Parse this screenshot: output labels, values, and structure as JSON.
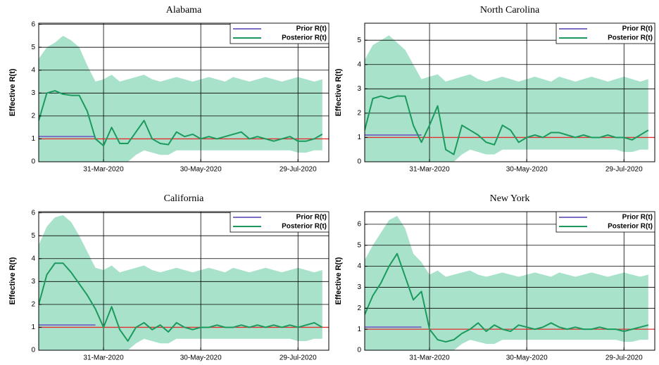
{
  "chart_data": [
    {
      "type": "line",
      "title": "Alabama",
      "y_label": "Effective R(t)",
      "x": [
        "2020-02-20",
        "2020-02-25",
        "2020-03-01",
        "2020-03-06",
        "2020-03-11",
        "2020-03-16",
        "2020-03-21",
        "2020-03-26",
        "2020-03-31",
        "2020-04-05",
        "2020-04-10",
        "2020-04-15",
        "2020-04-20",
        "2020-04-25",
        "2020-04-30",
        "2020-05-05",
        "2020-05-10",
        "2020-05-15",
        "2020-05-20",
        "2020-05-25",
        "2020-05-30",
        "2020-06-04",
        "2020-06-09",
        "2020-06-14",
        "2020-06-19",
        "2020-06-24",
        "2020-06-29",
        "2020-07-04",
        "2020-07-09",
        "2020-07-14",
        "2020-07-19",
        "2020-07-24",
        "2020-07-29",
        "2020-08-03",
        "2020-08-08",
        "2020-08-13"
      ],
      "xlim": [
        "2020-02-20",
        "2020-08-17"
      ],
      "xticks": [
        {
          "value": "2020-03-31",
          "label": "31-Mar-2020"
        },
        {
          "value": "2020-05-30",
          "label": "30-May-2020"
        },
        {
          "value": "2020-07-29",
          "label": "29-Jul-2020"
        }
      ],
      "ylim": [
        0,
        6.05
      ],
      "yticks": [
        0,
        1,
        2,
        3,
        4,
        5,
        6
      ],
      "grid": true,
      "reference_line": 1,
      "reference_color": "#e03030",
      "band": {
        "color": "#a9e2ca",
        "upper": [
          4.5,
          5,
          5.2,
          5.5,
          5.3,
          5,
          4.2,
          3.5,
          3.6,
          3.8,
          3.5,
          3.6,
          3.7,
          3.8,
          3.6,
          3.5,
          3.6,
          3.7,
          3.6,
          3.5,
          3.6,
          3.7,
          3.6,
          3.5,
          3.7,
          3.6,
          3.5,
          3.6,
          3.7,
          3.6,
          3.5,
          3.6,
          3.7,
          3.6,
          3.5,
          3.6
        ],
        "lower": [
          0,
          0,
          0,
          0,
          0,
          0,
          0,
          0,
          0,
          0,
          0,
          0,
          0.3,
          0.5,
          0.4,
          0.3,
          0.3,
          0.5,
          0.5,
          0.5,
          0.5,
          0.5,
          0.5,
          0.5,
          0.5,
          0.5,
          0.5,
          0.5,
          0.5,
          0.5,
          0.5,
          0.5,
          0.4,
          0.4,
          0.5,
          0.5
        ]
      },
      "series": [
        {
          "name": "Prior R(t)",
          "color": "#7a6fc4",
          "values": [
            1.1,
            1.1,
            1.1,
            1.1,
            1.1,
            1.1,
            1.1,
            1.1,
            null,
            null,
            null,
            null,
            null,
            null,
            null,
            null,
            null,
            null,
            null,
            null,
            null,
            null,
            null,
            null,
            null,
            null,
            null,
            null,
            null,
            null,
            null,
            null,
            null,
            null,
            null,
            null
          ]
        },
        {
          "name": "Posterior R(t)",
          "color": "#1a9a5e",
          "values": [
            1.8,
            3.0,
            3.1,
            2.95,
            2.9,
            2.9,
            2.2,
            1.0,
            0.7,
            1.5,
            0.8,
            0.8,
            1.3,
            1.8,
            1.0,
            0.8,
            0.75,
            1.3,
            1.1,
            1.2,
            1.0,
            1.1,
            1.0,
            1.1,
            1.2,
            1.3,
            1.0,
            1.1,
            1.0,
            0.9,
            1.0,
            1.1,
            0.9,
            0.9,
            1.0,
            1.2
          ]
        }
      ]
    },
    {
      "type": "line",
      "title": "North Carolina",
      "y_label": "Effective R(t)",
      "x": [
        "2020-02-20",
        "2020-02-25",
        "2020-03-01",
        "2020-03-06",
        "2020-03-11",
        "2020-03-16",
        "2020-03-21",
        "2020-03-26",
        "2020-03-31",
        "2020-04-05",
        "2020-04-10",
        "2020-04-15",
        "2020-04-20",
        "2020-04-25",
        "2020-04-30",
        "2020-05-05",
        "2020-05-10",
        "2020-05-15",
        "2020-05-20",
        "2020-05-25",
        "2020-05-30",
        "2020-06-04",
        "2020-06-09",
        "2020-06-14",
        "2020-06-19",
        "2020-06-24",
        "2020-06-29",
        "2020-07-04",
        "2020-07-09",
        "2020-07-14",
        "2020-07-19",
        "2020-07-24",
        "2020-07-29",
        "2020-08-03",
        "2020-08-08",
        "2020-08-13"
      ],
      "xlim": [
        "2020-02-20",
        "2020-08-17"
      ],
      "xticks": [
        {
          "value": "2020-03-31",
          "label": "31-Mar-2020"
        },
        {
          "value": "2020-05-30",
          "label": "30-May-2020"
        },
        {
          "value": "2020-07-29",
          "label": "29-Jul-2020"
        }
      ],
      "ylim": [
        0,
        5.7
      ],
      "yticks": [
        0,
        1,
        2,
        3,
        4,
        5
      ],
      "grid": true,
      "reference_line": 1,
      "reference_color": "#e03030",
      "band": {
        "color": "#a9e2ca",
        "upper": [
          4.2,
          4.8,
          5,
          5.2,
          4.9,
          4.6,
          4,
          3.4,
          3.5,
          3.6,
          3.3,
          3.4,
          3.5,
          3.6,
          3.4,
          3.3,
          3.4,
          3.5,
          3.4,
          3.3,
          3.4,
          3.5,
          3.4,
          3.3,
          3.5,
          3.4,
          3.3,
          3.4,
          3.5,
          3.4,
          3.3,
          3.4,
          3.5,
          3.4,
          3.3,
          3.4
        ],
        "lower": [
          0,
          0,
          0,
          0,
          0,
          0,
          0,
          0,
          0,
          0,
          0,
          0,
          0.3,
          0.5,
          0.4,
          0.3,
          0.3,
          0.5,
          0.5,
          0.5,
          0.5,
          0.5,
          0.5,
          0.5,
          0.5,
          0.5,
          0.5,
          0.5,
          0.5,
          0.5,
          0.5,
          0.5,
          0.4,
          0.4,
          0.5,
          0.5
        ]
      },
      "series": [
        {
          "name": "Prior R(t)",
          "color": "#7a6fc4",
          "values": [
            1.1,
            1.1,
            1.1,
            1.1,
            1.1,
            1.1,
            1.1,
            1.1,
            null,
            null,
            null,
            null,
            null,
            null,
            null,
            null,
            null,
            null,
            null,
            null,
            null,
            null,
            null,
            null,
            null,
            null,
            null,
            null,
            null,
            null,
            null,
            null,
            null,
            null,
            null,
            null
          ]
        },
        {
          "name": "Posterior R(t)",
          "color": "#1a9a5e",
          "values": [
            1.3,
            2.6,
            2.7,
            2.6,
            2.7,
            2.7,
            1.5,
            0.8,
            1.5,
            2.3,
            0.5,
            0.3,
            1.5,
            1.3,
            1.1,
            0.8,
            0.7,
            1.5,
            1.3,
            0.8,
            1.0,
            1.1,
            1.0,
            1.2,
            1.2,
            1.1,
            1.0,
            1.1,
            1.0,
            1.0,
            1.1,
            1.0,
            1.0,
            0.9,
            1.1,
            1.3
          ]
        }
      ]
    },
    {
      "type": "line",
      "title": "California",
      "y_label": "Effective R(t)",
      "x": [
        "2020-02-20",
        "2020-02-25",
        "2020-03-01",
        "2020-03-06",
        "2020-03-11",
        "2020-03-16",
        "2020-03-21",
        "2020-03-26",
        "2020-03-31",
        "2020-04-05",
        "2020-04-10",
        "2020-04-15",
        "2020-04-20",
        "2020-04-25",
        "2020-04-30",
        "2020-05-05",
        "2020-05-10",
        "2020-05-15",
        "2020-05-20",
        "2020-05-25",
        "2020-05-30",
        "2020-06-04",
        "2020-06-09",
        "2020-06-14",
        "2020-06-19",
        "2020-06-24",
        "2020-06-29",
        "2020-07-04",
        "2020-07-09",
        "2020-07-14",
        "2020-07-19",
        "2020-07-24",
        "2020-07-29",
        "2020-08-03",
        "2020-08-08",
        "2020-08-13"
      ],
      "xlim": [
        "2020-02-20",
        "2020-08-17"
      ],
      "xticks": [
        {
          "value": "2020-03-31",
          "label": "31-Mar-2020"
        },
        {
          "value": "2020-05-30",
          "label": "30-May-2020"
        },
        {
          "value": "2020-07-29",
          "label": "29-Jul-2020"
        }
      ],
      "ylim": [
        0,
        6.05
      ],
      "yticks": [
        0,
        1,
        2,
        3,
        4,
        5,
        6
      ],
      "grid": true,
      "reference_line": 1,
      "reference_color": "#e03030",
      "band": {
        "color": "#a9e2ca",
        "upper": [
          4.6,
          5.4,
          5.8,
          5.9,
          5.6,
          5,
          4.3,
          3.6,
          3.5,
          3.7,
          3.4,
          3.5,
          3.6,
          3.7,
          3.5,
          3.4,
          3.5,
          3.6,
          3.5,
          3.4,
          3.5,
          3.6,
          3.5,
          3.4,
          3.6,
          3.5,
          3.4,
          3.5,
          3.6,
          3.5,
          3.4,
          3.5,
          3.6,
          3.5,
          3.4,
          3.5
        ],
        "lower": [
          0,
          0,
          0,
          0,
          0,
          0,
          0,
          0,
          0,
          0,
          0,
          0,
          0.3,
          0.5,
          0.4,
          0.3,
          0.3,
          0.5,
          0.5,
          0.5,
          0.5,
          0.5,
          0.5,
          0.5,
          0.5,
          0.5,
          0.5,
          0.5,
          0.5,
          0.5,
          0.5,
          0.5,
          0.4,
          0.4,
          0.5,
          0.5
        ]
      },
      "series": [
        {
          "name": "Prior R(t)",
          "color": "#7a6fc4",
          "values": [
            1.1,
            1.1,
            1.1,
            1.1,
            1.1,
            1.1,
            1.1,
            1.1,
            null,
            null,
            null,
            null,
            null,
            null,
            null,
            null,
            null,
            null,
            null,
            null,
            null,
            null,
            null,
            null,
            null,
            null,
            null,
            null,
            null,
            null,
            null,
            null,
            null,
            null,
            null,
            null
          ]
        },
        {
          "name": "Posterior R(t)",
          "color": "#1a9a5e",
          "values": [
            2.0,
            3.3,
            3.8,
            3.8,
            3.4,
            2.9,
            2.4,
            1.8,
            1.0,
            1.9,
            0.9,
            0.4,
            1.0,
            1.2,
            0.9,
            1.1,
            0.8,
            1.2,
            1.0,
            0.9,
            1.0,
            1.0,
            1.1,
            1.0,
            1.0,
            1.1,
            1.0,
            1.1,
            1.0,
            1.1,
            1.0,
            1.1,
            1.0,
            1.1,
            1.2,
            1.0
          ]
        }
      ]
    },
    {
      "type": "line",
      "title": "New York",
      "y_label": "Effective R(t)",
      "x": [
        "2020-02-20",
        "2020-02-25",
        "2020-03-01",
        "2020-03-06",
        "2020-03-11",
        "2020-03-16",
        "2020-03-21",
        "2020-03-26",
        "2020-03-31",
        "2020-04-05",
        "2020-04-10",
        "2020-04-15",
        "2020-04-20",
        "2020-04-25",
        "2020-04-30",
        "2020-05-05",
        "2020-05-10",
        "2020-05-15",
        "2020-05-20",
        "2020-05-25",
        "2020-05-30",
        "2020-06-04",
        "2020-06-09",
        "2020-06-14",
        "2020-06-19",
        "2020-06-24",
        "2020-06-29",
        "2020-07-04",
        "2020-07-09",
        "2020-07-14",
        "2020-07-19",
        "2020-07-24",
        "2020-07-29",
        "2020-08-03",
        "2020-08-08",
        "2020-08-13"
      ],
      "xlim": [
        "2020-02-20",
        "2020-08-17"
      ],
      "xticks": [
        {
          "value": "2020-03-31",
          "label": "31-Mar-2020"
        },
        {
          "value": "2020-05-30",
          "label": "30-May-2020"
        },
        {
          "value": "2020-07-29",
          "label": "29-Jul-2020"
        }
      ],
      "ylim": [
        0,
        6.6
      ],
      "yticks": [
        0,
        1,
        2,
        3,
        4,
        5,
        6
      ],
      "grid": true,
      "reference_line": 1,
      "reference_color": "#e03030",
      "band": {
        "color": "#a9e2ca",
        "upper": [
          4.3,
          5,
          5.6,
          6.2,
          6.4,
          5.8,
          4.6,
          4.2,
          3.6,
          3.8,
          3.5,
          3.6,
          3.7,
          3.8,
          3.6,
          3.5,
          3.6,
          3.7,
          3.6,
          3.5,
          3.6,
          3.7,
          3.6,
          3.5,
          3.7,
          3.6,
          3.5,
          3.6,
          3.7,
          3.6,
          3.5,
          3.6,
          3.7,
          3.6,
          3.5,
          3.6
        ],
        "lower": [
          0,
          0,
          0,
          0,
          0,
          0,
          0,
          0,
          0,
          0,
          0,
          0,
          0.3,
          0.5,
          0.4,
          0.3,
          0.3,
          0.5,
          0.5,
          0.5,
          0.5,
          0.5,
          0.5,
          0.5,
          0.5,
          0.5,
          0.5,
          0.5,
          0.5,
          0.5,
          0.5,
          0.5,
          0.4,
          0.4,
          0.5,
          0.5
        ]
      },
      "series": [
        {
          "name": "Prior R(t)",
          "color": "#7a6fc4",
          "values": [
            1.1,
            1.1,
            1.1,
            1.1,
            1.1,
            1.1,
            1.1,
            1.1,
            null,
            null,
            null,
            null,
            null,
            null,
            null,
            null,
            null,
            null,
            null,
            null,
            null,
            null,
            null,
            null,
            null,
            null,
            null,
            null,
            null,
            null,
            null,
            null,
            null,
            null,
            null,
            null
          ]
        },
        {
          "name": "Posterior R(t)",
          "color": "#1a9a5e",
          "values": [
            1.7,
            2.6,
            3.2,
            4.0,
            4.6,
            3.5,
            2.4,
            2.8,
            1.0,
            0.5,
            0.4,
            0.5,
            0.8,
            1.0,
            1.3,
            0.9,
            1.2,
            1.0,
            0.9,
            1.2,
            1.1,
            1.0,
            1.1,
            1.3,
            1.1,
            1.0,
            1.1,
            1.0,
            1.0,
            1.1,
            1.0,
            1.0,
            0.9,
            1.0,
            1.1,
            1.2
          ]
        }
      ]
    }
  ]
}
